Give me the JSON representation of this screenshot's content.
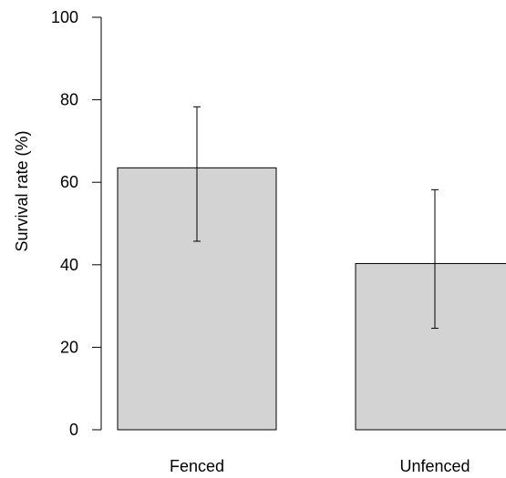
{
  "chart_data": {
    "type": "bar",
    "title": "",
    "xlabel": "",
    "ylabel": "Survival rate (%)",
    "categories": [
      "Fenced",
      "Unfenced"
    ],
    "values": [
      63.5,
      40.3
    ],
    "error_bars": [
      {
        "low": 45.7,
        "high": 78.3
      },
      {
        "low": 24.6,
        "high": 58.2
      }
    ],
    "ylim": [
      0,
      100
    ],
    "yticks": [
      0,
      20,
      40,
      60,
      80,
      100
    ],
    "grid": false,
    "bar_color": "#d3d3d3",
    "bar_border_color": "#000000",
    "error_bar_color": "#000000"
  }
}
